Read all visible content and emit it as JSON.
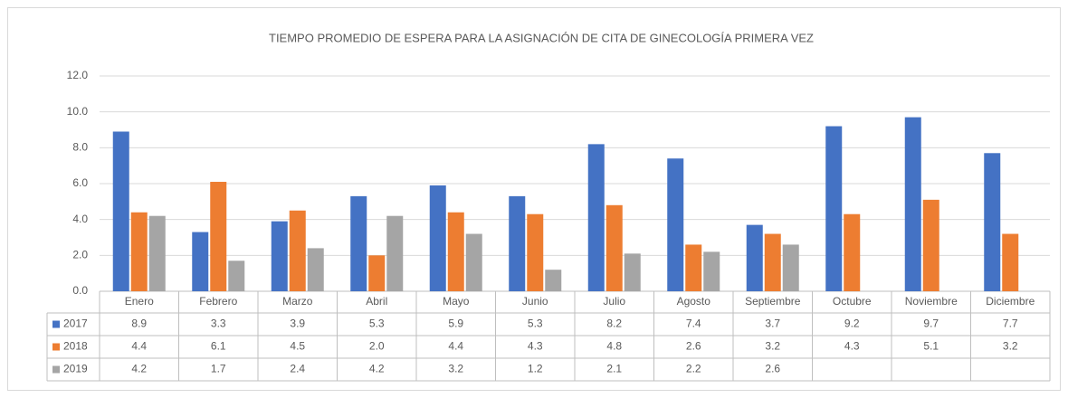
{
  "chart_data": {
    "type": "bar",
    "title": "TIEMPO PROMEDIO DE ESPERA PARA LA ASIGNACIÓN DE CITA DE GINECOLOGÍA PRIMERA VEZ",
    "categories": [
      "Enero",
      "Febrero",
      "Marzo",
      "Abril",
      "Mayo",
      "Junio",
      "Julio",
      "Agosto",
      "Septiembre",
      "Octubre",
      "Noviembre",
      "Diciembre"
    ],
    "series": [
      {
        "name": "2017",
        "color": "#4472c4",
        "values": [
          8.9,
          3.3,
          3.9,
          5.3,
          5.9,
          5.3,
          8.2,
          7.4,
          3.7,
          9.2,
          9.7,
          7.7
        ],
        "value_labels": [
          "8.9",
          "3.3",
          "3.9",
          "5.3",
          "5.9",
          "5.3",
          "8.2",
          "7.4",
          "3.7",
          "9.2",
          "9.7",
          "7.7"
        ]
      },
      {
        "name": "2018",
        "color": "#ed7d31",
        "values": [
          4.4,
          6.1,
          4.5,
          2.0,
          4.4,
          4.3,
          4.8,
          2.6,
          3.2,
          4.3,
          5.1,
          3.2
        ],
        "value_labels": [
          "4.4",
          "6.1",
          "4.5",
          "2.0",
          "4.4",
          "4.3",
          "4.8",
          "2.6",
          "3.2",
          "4.3",
          "5.1",
          "3.2"
        ]
      },
      {
        "name": "2019",
        "color": "#a5a5a5",
        "values": [
          4.2,
          1.7,
          2.4,
          4.2,
          3.2,
          1.2,
          2.1,
          2.2,
          2.6,
          null,
          null,
          null
        ],
        "value_labels": [
          "4.2",
          "1.7",
          "2.4",
          "4.2",
          "3.2",
          "1.2",
          "2.1",
          "2.2",
          "2.6",
          null,
          null,
          null
        ]
      }
    ],
    "ylim": [
      0,
      12
    ],
    "yticks": [
      {
        "value": 0,
        "label": "0.0"
      },
      {
        "value": 2,
        "label": "2.0"
      },
      {
        "value": 4,
        "label": "4.0"
      },
      {
        "value": 6,
        "label": "6.0"
      },
      {
        "value": 8,
        "label": "8.0"
      },
      {
        "value": 10,
        "label": "10.0"
      },
      {
        "value": 12,
        "label": "12.0"
      }
    ],
    "grid": true
  }
}
